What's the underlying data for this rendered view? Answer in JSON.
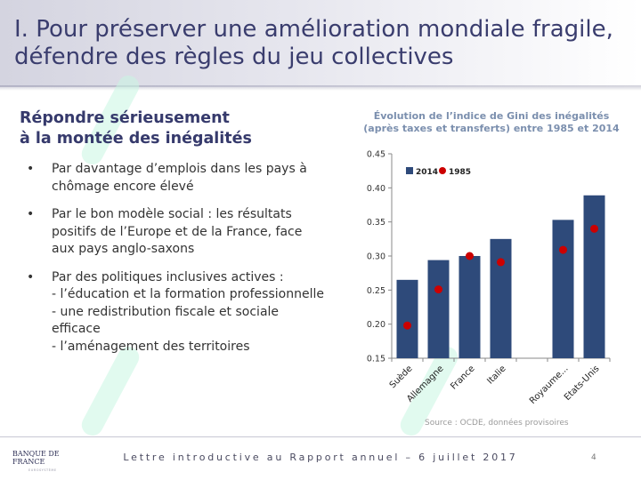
{
  "slide": {
    "title": "I. Pour préserver une amélioration mondiale fragile, défendre des règles du jeu collectives",
    "subtitle": "Répondre sérieusement\nà la montée des inégalités",
    "bullets": [
      "Par davantage d’emplois dans les pays à chômage encore élevé",
      "Par le bon modèle social : les résultats positifs de l’Europe et de la France, face aux pays anglo-saxons",
      "Par des politiques inclusives actives :\n- l’éducation et la formation professionnelle\n- une redistribution fiscale et sociale efficace\n- l’aménagement des territoires"
    ],
    "bullet_glyph": "•"
  },
  "footer": {
    "logo": "BANQUE DE FRANCE",
    "logo_sub": "EUROSYSTÈME",
    "text": "Lettre introductive au Rapport annuel – 6 juillet 2017",
    "page": "4"
  },
  "colors": {
    "bar": "#2e4a7a",
    "dot": "#cc0000",
    "title": "#3a3d6e",
    "chart_title": "#7b8fae"
  },
  "chart_data": {
    "type": "bar",
    "title": "Évolution de l’indice de Gini des inégalités (après taxes et transferts) entre 1985 et 2014",
    "categories": [
      "Suède",
      "Allemagne",
      "France",
      "Italie",
      "",
      "Royaume...",
      "Etats-Unis"
    ],
    "series": [
      {
        "name": "2014",
        "kind": "bar",
        "values": [
          0.265,
          0.294,
          0.3,
          0.325,
          null,
          0.353,
          0.389
        ]
      },
      {
        "name": "1985",
        "kind": "dot",
        "values": [
          0.198,
          0.251,
          0.3,
          0.291,
          null,
          0.309,
          0.34
        ]
      }
    ],
    "ylim": [
      0.15,
      0.45
    ],
    "yticks": [
      "0.15",
      "0.20",
      "0.25",
      "0.30",
      "0.35",
      "0.40",
      "0.45"
    ],
    "legend_position": "top-left",
    "grid": false,
    "source": "Source : OCDE, données provisoires"
  }
}
